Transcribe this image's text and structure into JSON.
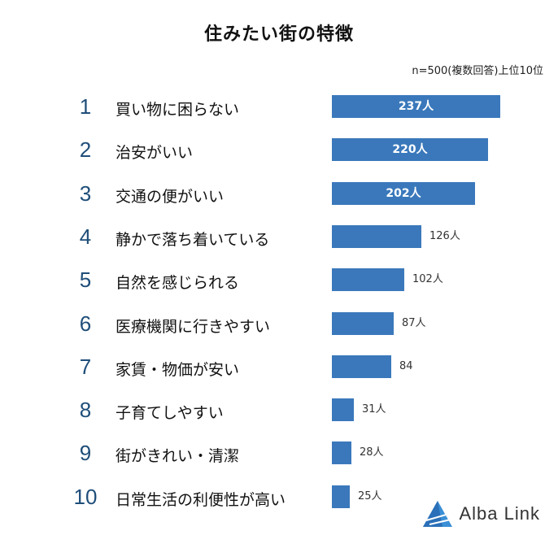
{
  "title": "住みたい街の特徴",
  "note": "n=500(複数回答)上位10位",
  "logo": {
    "text": "Alba Link",
    "color": "#3a8fd6"
  },
  "chart_data": {
    "type": "bar",
    "orientation": "horizontal",
    "title": "住みたい街の特徴",
    "bar_color": "#3a78bb",
    "categories": [
      "買い物に困らない",
      "治安がいい",
      "交通の便がいい",
      "静かで落ち着いている",
      "自然を感じられる",
      "医療機関に行きやすい",
      "家賃・物価が安い",
      "子育てしやすい",
      "街がきれい・清潔",
      "日常生活の利便性が高い"
    ],
    "ranks": [
      "1",
      "2",
      "3",
      "4",
      "5",
      "6",
      "7",
      "8",
      "9",
      "10"
    ],
    "values": [
      237,
      220,
      202,
      126,
      102,
      87,
      84,
      31,
      28,
      25
    ],
    "value_labels": [
      "237人",
      "220人",
      "202人",
      "126人",
      "102人",
      "87人",
      "84",
      "31人",
      "28人",
      "25人"
    ]
  }
}
